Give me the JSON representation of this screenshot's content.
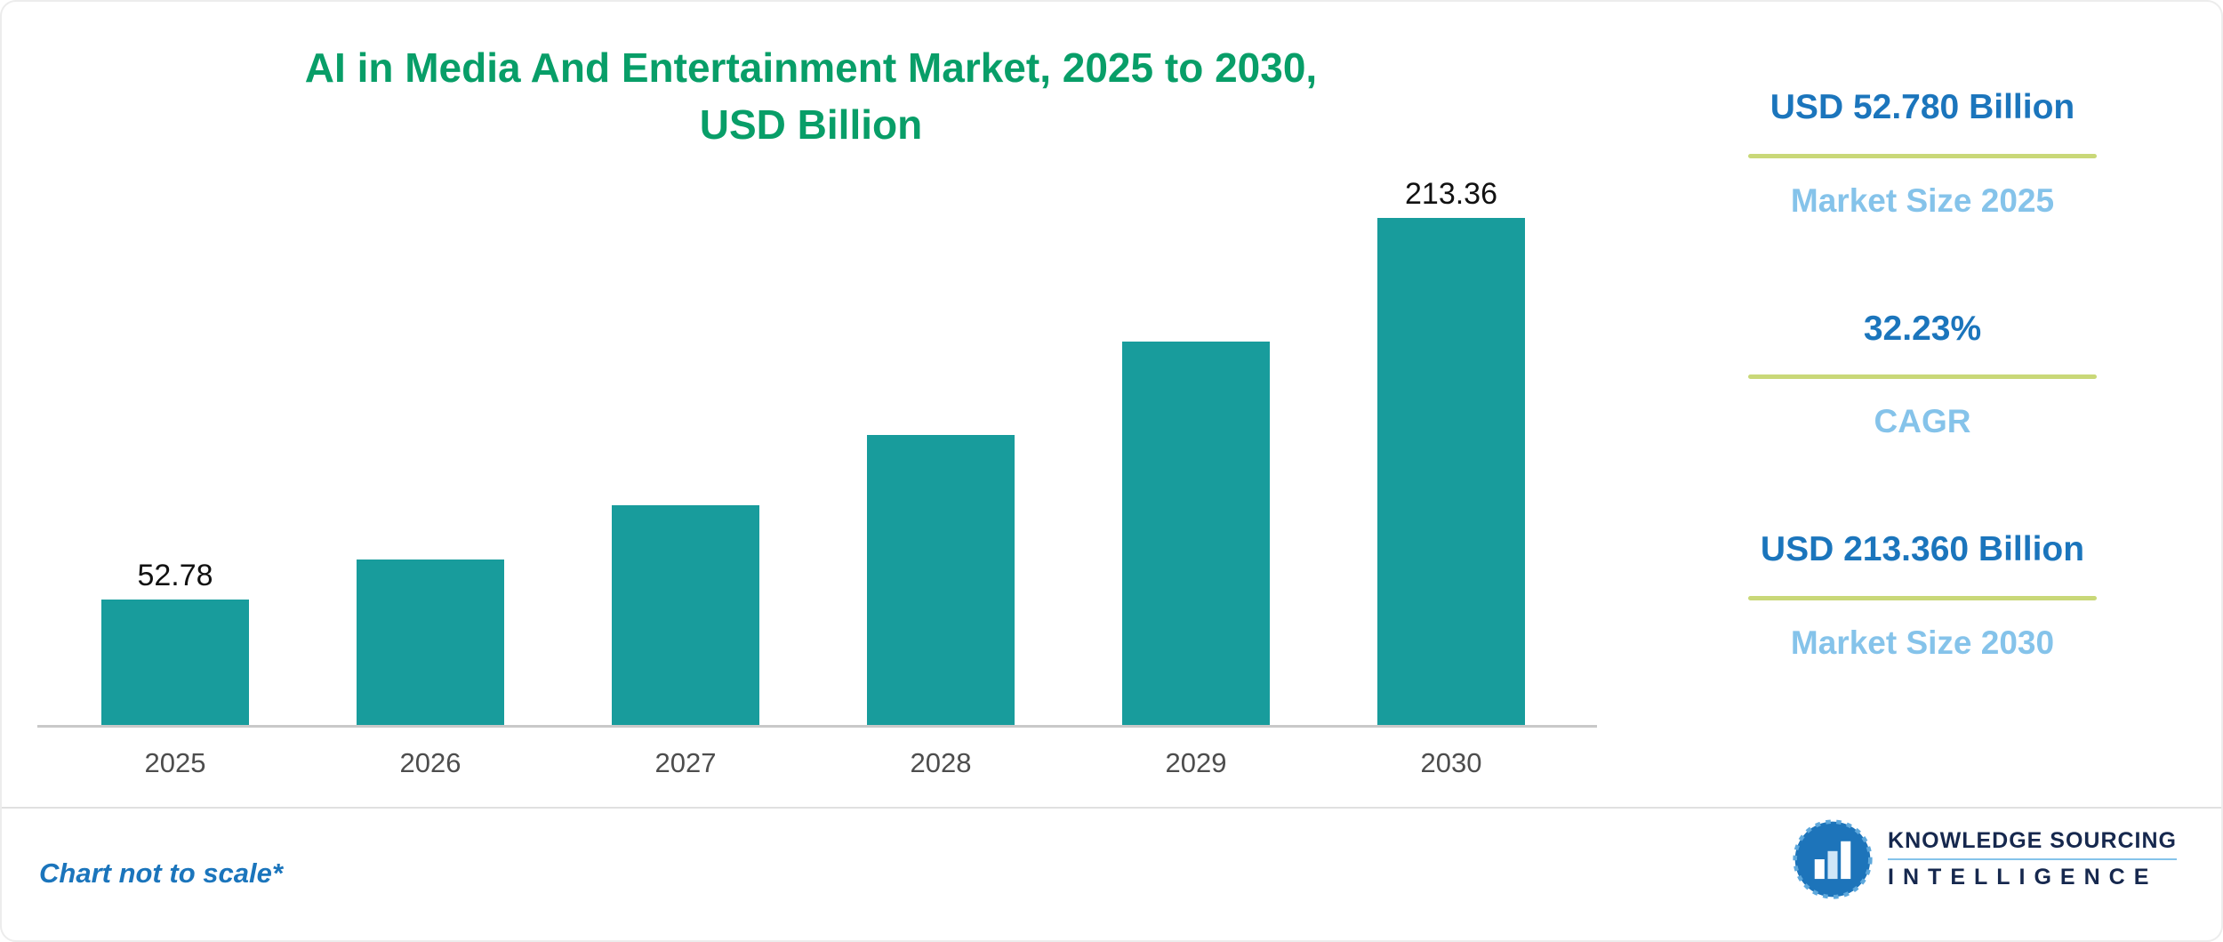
{
  "colors": {
    "title_green": "#089e68",
    "bar_teal": "#189c9c",
    "dark_blue": "#1b75bc",
    "light_blue": "#85c3ea",
    "divider_green": "#c9d878",
    "axis_gray": "#c9c9c9",
    "year_gray": "#4d4d4d",
    "navy": "#16284e"
  },
  "chart_data": {
    "type": "bar",
    "title_line1": "AI in Media And Entertainment Market, 2025 to 2030,",
    "title_line2": "USD Billion",
    "categories": [
      "2025",
      "2026",
      "2027",
      "2028",
      "2029",
      "2030"
    ],
    "values": [
      52.78,
      69.79,
      92.28,
      122.03,
      161.36,
      213.36
    ],
    "value_labels": [
      "52.78",
      "",
      "",
      "",
      "",
      "213.36"
    ],
    "ylim": [
      0,
      220
    ],
    "grid": false,
    "legend": false,
    "bar_color": "#189c9c"
  },
  "stats": [
    {
      "value": "USD 52.780 Billion",
      "label": "Market Size 2025"
    },
    {
      "value": "32.23%",
      "label": "CAGR"
    },
    {
      "value": "USD 213.360 Billion",
      "label": "Market Size 2030"
    }
  ],
  "footer": {
    "note": "Chart not to scale*",
    "logo_line1": "KNOWLEDGE SOURCING",
    "logo_line2": "INTELLIGENCE"
  }
}
